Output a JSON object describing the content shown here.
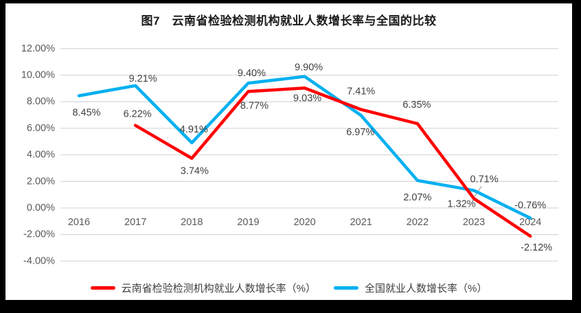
{
  "chart_data": {
    "type": "line",
    "title": "图7　云南省检验检测机构就业人数增长率与全国的比较",
    "categories": [
      "2016",
      "2017",
      "2018",
      "2019",
      "2020",
      "2021",
      "2022",
      "2023",
      "2024"
    ],
    "series": [
      {
        "name": "云南省检验检测机构就业人数增长率（%）",
        "color": "#ff0000",
        "values": [
          null,
          6.22,
          3.74,
          8.77,
          9.03,
          7.41,
          6.35,
          0.71,
          -2.12
        ],
        "labels": [
          "",
          "6.22%",
          "3.74%",
          "8.77%",
          "9.03%",
          "7.41%",
          "6.35%",
          "0.71%",
          "-2.12%"
        ]
      },
      {
        "name": "全国就业人数增长率（%）",
        "color": "#00b0f0",
        "values": [
          8.45,
          9.21,
          4.91,
          9.4,
          9.9,
          6.97,
          2.07,
          1.32,
          -0.76
        ],
        "labels": [
          "8.45%",
          "9.21%",
          "4.91%",
          "9.40%",
          "9.90%",
          "6.97%",
          "2.07%",
          "1.32%",
          "-0.76%"
        ]
      }
    ],
    "y_axis": {
      "min": -4,
      "max": 12,
      "step": 2,
      "tick_labels": [
        "12.00%",
        "10.00%",
        "8.00%",
        "6.00%",
        "4.00%",
        "2.00%",
        "0.00%",
        "-2.00%",
        "-4.00%"
      ]
    },
    "x_axis": {
      "label_position": "below-zero-line"
    },
    "grid": true,
    "legend_position": "bottom"
  }
}
